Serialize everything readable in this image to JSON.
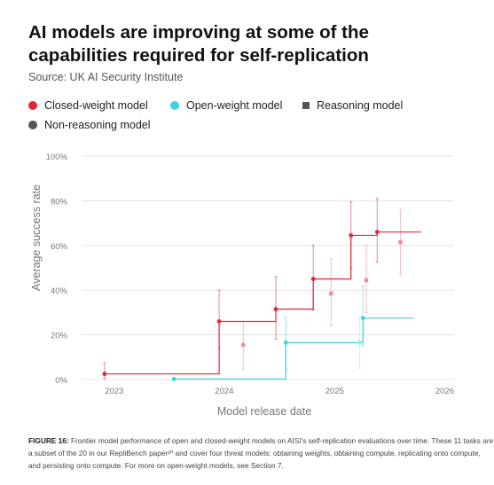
{
  "title": "AI models are improving at some of the capabilities required for self-replication",
  "subtitle": "Source: UK AI Security Institute",
  "legend": {
    "closed": "Closed-weight model",
    "open": "Open-weight model",
    "reasoning": "Reasoning model",
    "nonreasoning": "Non-reasoning model"
  },
  "colors": {
    "closed": "#e0283a",
    "closed_light": "#f08a96",
    "open": "#3fd3dd",
    "open_light": "#9ce8ee",
    "marker_legend": "#555555",
    "grid": "#e3e3e3",
    "axis_text": "#777777"
  },
  "caption": {
    "label": "FIGURE 16:",
    "text": "Frontier model performance of open and closed-weight models on AISI's self-replication evaluations over time. These 11 tasks are a subset of the 20 in our RepliBench paper²⁰ and cover four threat models: obtaining weights, obtaining compute, replicating onto compute, and persisting onto compute. For more on open-weight models, see Section 7."
  },
  "chart_data": {
    "type": "scatter",
    "xlabel": "Model release date",
    "ylabel": "Average success rate",
    "xlim": [
      "2022-09-15",
      "2026-02-01"
    ],
    "ylim": [
      0,
      100
    ],
    "yticks": [
      0,
      20,
      40,
      60,
      80,
      100
    ],
    "ytick_labels": [
      "0%",
      "20%",
      "40%",
      "60%",
      "80%",
      "100%"
    ],
    "xticks": [
      "2023-01-01",
      "2024-01-01",
      "2025-01-01",
      "2026-01-01"
    ],
    "xtick_labels": [
      "2023",
      "2024",
      "2025",
      "2026"
    ],
    "grid": true,
    "series": [
      {
        "name": "Closed-weight model",
        "color_key": "closed",
        "points": [
          {
            "date": "2022-11-30",
            "y": 2.5,
            "low": 0.5,
            "high": 7.5,
            "marker": "circle",
            "frontier": true
          },
          {
            "date": "2023-12-15",
            "y": 26,
            "low": 14,
            "high": 40,
            "marker": "circle",
            "frontier": true
          },
          {
            "date": "2024-03-04",
            "y": 15.5,
            "low": 4.5,
            "high": 26,
            "marker": "circle",
            "frontier": false
          },
          {
            "date": "2024-06-20",
            "y": 31.5,
            "low": 18,
            "high": 46,
            "marker": "circle",
            "frontier": true
          },
          {
            "date": "2024-10-22",
            "y": 45,
            "low": 31,
            "high": 60,
            "marker": "circle",
            "frontier": true
          },
          {
            "date": "2024-12-20",
            "y": 38.5,
            "low": 24,
            "high": 54,
            "marker": "square",
            "frontier": false
          },
          {
            "date": "2025-02-24",
            "y": 64.5,
            "low": 50,
            "high": 79.5,
            "marker": "circle",
            "frontier": true
          },
          {
            "date": "2025-04-16",
            "y": 44.5,
            "low": 30,
            "high": 60,
            "marker": "square",
            "frontier": false
          },
          {
            "date": "2025-05-22",
            "y": 66,
            "low": 52.5,
            "high": 81,
            "marker": "circle",
            "frontier": true
          },
          {
            "date": "2025-08-07",
            "y": 61.5,
            "low": 47,
            "high": 76,
            "marker": "square",
            "frontier": false
          }
        ],
        "frontier_end": "2025-10-15"
      },
      {
        "name": "Open-weight model",
        "color_key": "open",
        "points": [
          {
            "date": "2023-07-18",
            "y": 0.2,
            "low": 0,
            "high": 1,
            "marker": "circle",
            "frontier": true
          },
          {
            "date": "2024-07-23",
            "y": 16.5,
            "low": 5,
            "high": 28,
            "marker": "circle",
            "frontier": true
          },
          {
            "date": "2025-03-25",
            "y": 16.5,
            "low": 5,
            "high": 28,
            "marker": "square",
            "frontier": false
          },
          {
            "date": "2025-04-05",
            "y": 27.5,
            "low": 15,
            "high": 42,
            "marker": "circle",
            "frontier": true
          }
        ],
        "frontier_end": "2025-09-20"
      }
    ]
  }
}
